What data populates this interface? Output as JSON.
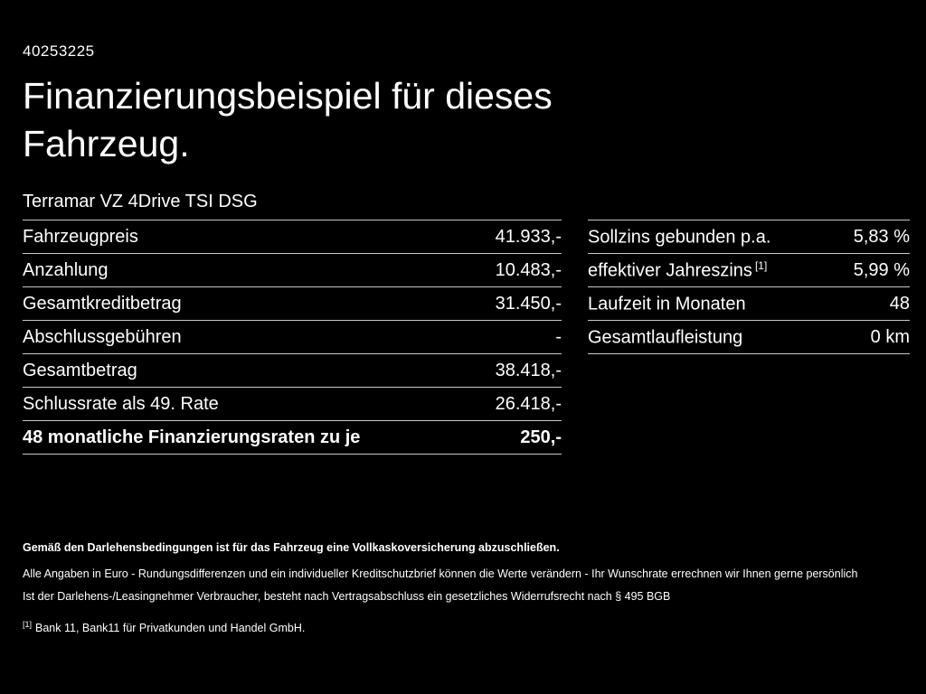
{
  "page": {
    "id": "40253225",
    "title": "Finanzierungsbeispiel für dieses Fahrzeug.",
    "vehicle": "Terramar VZ 4Drive TSI DSG"
  },
  "finance_table": {
    "rows": [
      {
        "label": "Fahrzeugpreis",
        "value": "41.933,-"
      },
      {
        "label": "Anzahlung",
        "value": "10.483,-"
      },
      {
        "label": "Gesamtkreditbetrag",
        "value": "31.450,-"
      },
      {
        "label": "Abschlussgebühren",
        "value": "-"
      },
      {
        "label": "Gesamtbetrag",
        "value": "38.418,-"
      },
      {
        "label": "Schlussrate als 49. Rate",
        "value": "26.418,-"
      },
      {
        "label": "48 monatliche Finanzierungsraten zu je",
        "value": "250,-"
      }
    ]
  },
  "conditions_table": {
    "rows": [
      {
        "label": "Sollzins gebunden p.a.",
        "sup": "",
        "value": "5,83 %"
      },
      {
        "label": "effektiver Jahreszins",
        "sup": "[1]",
        "value": "5,99 %"
      },
      {
        "label": "Laufzeit in Monaten",
        "sup": "",
        "value": "48"
      },
      {
        "label": "Gesamtlaufleistung",
        "sup": "",
        "value": "0 km"
      }
    ]
  },
  "footer": {
    "line1": "Gemäß den Darlehensbedingungen ist für das Fahrzeug eine Vollkaskoversicherung abzuschließen.",
    "line2": "Alle Angaben in Euro - Rundungsdifferenzen und ein individueller Kreditschutzbrief können die Werte verändern - Ihr Wunschrate errechnen wir Ihnen gerne persönlich",
    "line3": "Ist der Darlehens-/Leasingnehmer Verbraucher, besteht nach Vertragsabschluss ein gesetzliches Widerrufsrecht nach § 495 BGB",
    "footnote_marker": "[1]",
    "footnote_text": "Bank 11, Bank11 für Privatkunden und Handel GmbH."
  }
}
